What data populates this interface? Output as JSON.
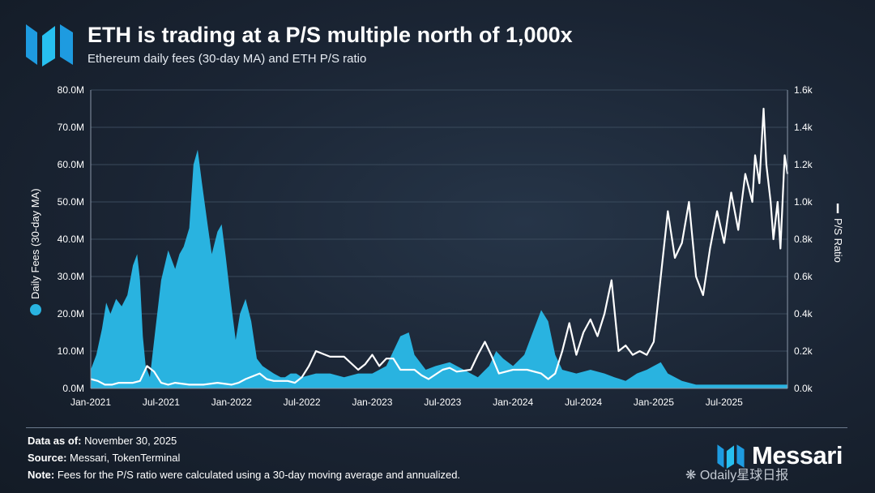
{
  "header": {
    "title": "ETH is trading at a P/S multiple north of 1,000x",
    "subtitle": "Ethereum daily fees (30-day MA) and ETH P/S ratio"
  },
  "footer": {
    "data_label": "Data as of:",
    "data_value": "November 30, 2025",
    "source_label": "Source:",
    "source_value": "Messari, TokenTerminal",
    "note_label": "Note:",
    "note_value": "Fees for the P/S ratio were calculated using a 30-day moving average and annualized."
  },
  "brand": {
    "name": "Messari"
  },
  "watermark": "Odaily星球日报",
  "colors": {
    "fees": "#29b3e0",
    "ps": "#ffffff",
    "grid": "#3a4a5c"
  },
  "chart_data": {
    "type": "area+line",
    "title": "ETH is trading at a P/S multiple north of 1,000x",
    "x_ticks": [
      "Jan-2021",
      "Jul-2021",
      "Jan-2022",
      "Jul-2022",
      "Jan-2023",
      "Jul-2023",
      "Jan-2024",
      "Jul-2024",
      "Jan-2025",
      "Jul-2025"
    ],
    "x_range": [
      2021.0,
      2025.95
    ],
    "y_left": {
      "label": "Daily Fees (30-day MA)",
      "ticks": [
        "0.0M",
        "10.0M",
        "20.0M",
        "30.0M",
        "40.0M",
        "50.0M",
        "60.0M",
        "70.0M",
        "80.0M"
      ],
      "range": [
        0,
        80
      ]
    },
    "y_right": {
      "label": "P/S Ratio",
      "ticks": [
        "0.0k",
        "0.2k",
        "0.4k",
        "0.6k",
        "0.8k",
        "1.0k",
        "1.2k",
        "1.4k",
        "1.6k"
      ],
      "range": [
        0,
        1.6
      ]
    },
    "series": [
      {
        "name": "Daily Fees (30-day MA)",
        "axis": "left",
        "units": "M USD",
        "style": "area",
        "x": [
          2021.0,
          2021.04,
          2021.08,
          2021.11,
          2021.14,
          2021.18,
          2021.22,
          2021.26,
          2021.3,
          2021.33,
          2021.35,
          2021.37,
          2021.39,
          2021.42,
          2021.46,
          2021.5,
          2021.55,
          2021.6,
          2021.63,
          2021.66,
          2021.7,
          2021.73,
          2021.76,
          2021.79,
          2021.83,
          2021.86,
          2021.9,
          2021.93,
          2021.96,
          2022.0,
          2022.03,
          2022.06,
          2022.1,
          2022.14,
          2022.18,
          2022.22,
          2022.26,
          2022.3,
          2022.35,
          2022.38,
          2022.42,
          2022.46,
          2022.5,
          2022.6,
          2022.7,
          2022.8,
          2022.9,
          2023.0,
          2023.1,
          2023.2,
          2023.26,
          2023.3,
          2023.34,
          2023.38,
          2023.45,
          2023.55,
          2023.65,
          2023.75,
          2023.83,
          2023.88,
          2023.93,
          2024.0,
          2024.08,
          2024.14,
          2024.2,
          2024.25,
          2024.3,
          2024.35,
          2024.45,
          2024.55,
          2024.65,
          2024.72,
          2024.8,
          2024.88,
          2024.95,
          2025.0,
          2025.05,
          2025.1,
          2025.2,
          2025.3,
          2025.4,
          2025.5,
          2025.6,
          2025.7,
          2025.8,
          2025.9,
          2025.95
        ],
        "y": [
          5,
          9,
          16,
          23,
          20,
          24,
          22,
          25,
          33,
          36,
          29,
          14,
          6,
          3,
          16,
          29,
          37,
          32,
          36,
          38,
          43,
          60,
          64,
          55,
          44,
          36,
          42,
          44,
          35,
          22,
          13,
          20,
          24,
          18,
          8,
          6,
          5,
          4,
          3,
          3,
          4,
          4,
          3,
          4,
          4,
          3,
          4,
          4,
          6,
          14,
          15,
          9,
          7,
          5,
          6,
          7,
          5,
          3,
          6,
          10,
          8,
          6,
          9,
          15,
          21,
          18,
          9,
          5,
          4,
          5,
          4,
          3,
          2,
          4,
          5,
          6,
          7,
          4,
          2,
          1,
          1,
          1,
          1,
          1,
          1,
          1,
          1
        ]
      },
      {
        "name": "P/S Ratio",
        "axis": "right",
        "units": "thousands (x)",
        "style": "line",
        "x": [
          2021.0,
          2021.05,
          2021.1,
          2021.15,
          2021.2,
          2021.3,
          2021.35,
          2021.4,
          2021.45,
          2021.5,
          2021.55,
          2021.6,
          2021.7,
          2021.8,
          2021.9,
          2022.0,
          2022.05,
          2022.1,
          2022.2,
          2022.25,
          2022.3,
          2022.4,
          2022.45,
          2022.5,
          2022.55,
          2022.6,
          2022.7,
          2022.8,
          2022.9,
          2022.95,
          2023.0,
          2023.05,
          2023.1,
          2023.15,
          2023.2,
          2023.25,
          2023.3,
          2023.35,
          2023.4,
          2023.5,
          2023.55,
          2023.6,
          2023.7,
          2023.75,
          2023.8,
          2023.85,
          2023.9,
          2024.0,
          2024.1,
          2024.2,
          2024.25,
          2024.3,
          2024.35,
          2024.4,
          2024.45,
          2024.5,
          2024.55,
          2024.6,
          2024.65,
          2024.7,
          2024.75,
          2024.8,
          2024.85,
          2024.9,
          2024.95,
          2025.0,
          2025.05,
          2025.1,
          2025.15,
          2025.2,
          2025.25,
          2025.3,
          2025.35,
          2025.4,
          2025.45,
          2025.5,
          2025.55,
          2025.6,
          2025.65,
          2025.7,
          2025.72,
          2025.75,
          2025.78,
          2025.8,
          2025.83,
          2025.85,
          2025.88,
          2025.9,
          2025.93,
          2025.95
        ],
        "y": [
          0.05,
          0.04,
          0.02,
          0.02,
          0.03,
          0.03,
          0.04,
          0.12,
          0.09,
          0.03,
          0.02,
          0.03,
          0.02,
          0.02,
          0.03,
          0.02,
          0.03,
          0.05,
          0.08,
          0.05,
          0.04,
          0.04,
          0.03,
          0.06,
          0.12,
          0.2,
          0.17,
          0.17,
          0.1,
          0.13,
          0.18,
          0.12,
          0.16,
          0.16,
          0.1,
          0.1,
          0.1,
          0.07,
          0.05,
          0.1,
          0.11,
          0.09,
          0.1,
          0.18,
          0.25,
          0.17,
          0.08,
          0.1,
          0.1,
          0.08,
          0.05,
          0.08,
          0.2,
          0.35,
          0.18,
          0.3,
          0.37,
          0.28,
          0.4,
          0.58,
          0.2,
          0.23,
          0.18,
          0.2,
          0.18,
          0.25,
          0.6,
          0.95,
          0.7,
          0.78,
          1.0,
          0.6,
          0.5,
          0.75,
          0.95,
          0.78,
          1.05,
          0.85,
          1.15,
          1.0,
          1.25,
          1.1,
          1.5,
          1.2,
          1.0,
          0.8,
          1.0,
          0.75,
          1.25,
          1.15
        ]
      }
    ]
  }
}
